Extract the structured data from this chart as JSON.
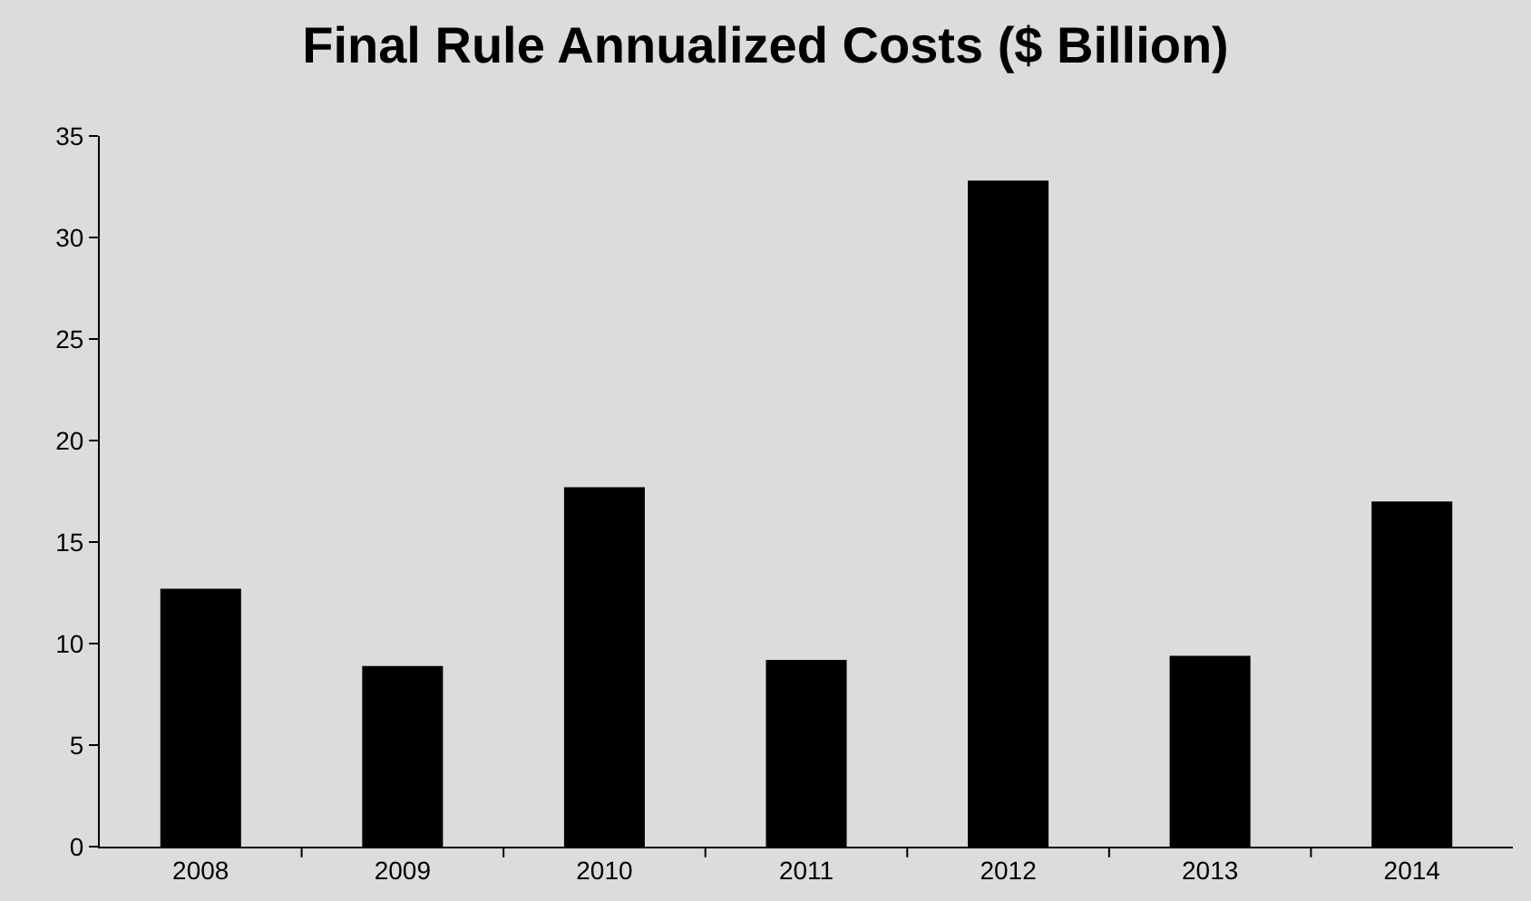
{
  "chart_data": {
    "type": "bar",
    "title": "Final Rule Annualized Costs ($ Billion)",
    "categories": [
      "2008",
      "2009",
      "2010",
      "2011",
      "2012",
      "2013",
      "2014"
    ],
    "values": [
      12.7,
      8.9,
      17.7,
      9.2,
      32.8,
      9.4,
      17.0
    ],
    "color": "#000000",
    "ylim": [
      0,
      35
    ],
    "yticks": [
      0,
      5,
      10,
      15,
      20,
      25,
      30,
      35
    ],
    "grid": false,
    "legend": false
  }
}
